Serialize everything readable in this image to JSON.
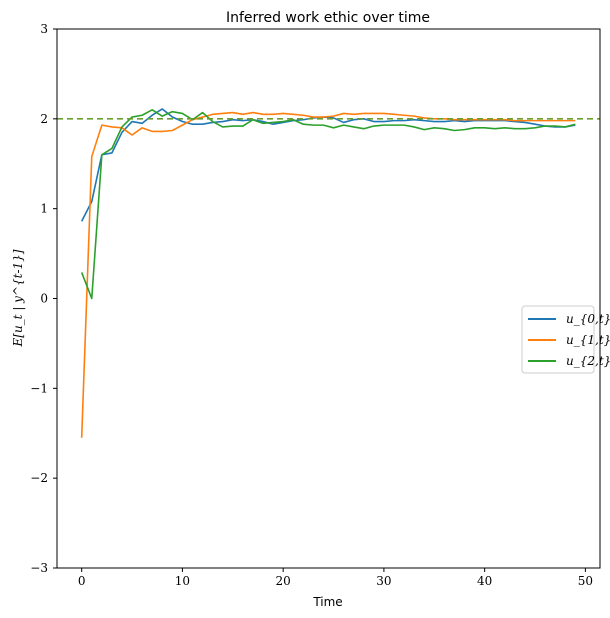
{
  "chart_data": {
    "type": "line",
    "title": "Inferred work ethic over time",
    "xlabel": "Time",
    "ylabel": "E[u_t | y^{t-1}]",
    "xlim": [
      -2.45,
      51.45
    ],
    "ylim": [
      -3,
      3
    ],
    "xticks": [
      0,
      10,
      20,
      30,
      40,
      50
    ],
    "yticks": [
      -3,
      -2,
      -1,
      0,
      1,
      2,
      3
    ],
    "ytick_labels": [
      "−3",
      "−2",
      "−1",
      "0",
      "1",
      "2",
      "3"
    ],
    "x": [
      0,
      1,
      2,
      3,
      4,
      5,
      6,
      7,
      8,
      9,
      10,
      11,
      12,
      13,
      14,
      15,
      16,
      17,
      18,
      19,
      20,
      21,
      22,
      23,
      24,
      25,
      26,
      27,
      28,
      29,
      30,
      31,
      32,
      33,
      34,
      35,
      36,
      37,
      38,
      39,
      40,
      41,
      42,
      43,
      44,
      45,
      46,
      47,
      48,
      49
    ],
    "series": [
      {
        "name": "u_{0,t}",
        "color": "#1f77b4",
        "values": [
          0.86,
          1.08,
          1.6,
          1.62,
          1.85,
          1.97,
          1.95,
          2.04,
          2.11,
          2.02,
          1.97,
          1.94,
          1.94,
          1.96,
          1.97,
          1.99,
          1.98,
          1.99,
          1.97,
          1.94,
          1.96,
          1.98,
          1.99,
          2.01,
          2.02,
          2.01,
          1.96,
          1.99,
          2.0,
          1.97,
          1.97,
          1.98,
          1.98,
          1.99,
          1.98,
          1.97,
          1.97,
          1.98,
          1.97,
          1.98,
          1.98,
          1.98,
          1.98,
          1.97,
          1.96,
          1.94,
          1.92,
          1.91,
          1.91,
          1.93
        ]
      },
      {
        "name": "u_{1,t}",
        "color": "#ff7f0e",
        "values": [
          -1.55,
          1.58,
          1.93,
          1.91,
          1.9,
          1.82,
          1.9,
          1.86,
          1.86,
          1.87,
          1.93,
          1.99,
          2.02,
          2.05,
          2.06,
          2.07,
          2.05,
          2.07,
          2.05,
          2.05,
          2.06,
          2.05,
          2.04,
          2.02,
          2.02,
          2.03,
          2.06,
          2.05,
          2.06,
          2.06,
          2.06,
          2.05,
          2.04,
          2.03,
          2.01,
          2.0,
          2.0,
          1.99,
          1.99,
          1.99,
          1.99,
          1.99,
          1.99,
          1.98,
          1.98,
          1.98,
          1.98,
          1.98,
          1.98,
          1.98
        ]
      },
      {
        "name": "u_{2,t}",
        "color": "#2ca02c",
        "values": [
          0.29,
          0.0,
          1.6,
          1.67,
          1.91,
          2.02,
          2.04,
          2.1,
          2.03,
          2.08,
          2.06,
          1.99,
          2.07,
          1.97,
          1.91,
          1.92,
          1.92,
          1.99,
          1.95,
          1.96,
          1.97,
          1.99,
          1.94,
          1.93,
          1.93,
          1.9,
          1.93,
          1.91,
          1.89,
          1.92,
          1.93,
          1.93,
          1.93,
          1.91,
          1.88,
          1.9,
          1.89,
          1.87,
          1.88,
          1.9,
          1.9,
          1.89,
          1.9,
          1.89,
          1.89,
          1.9,
          1.92,
          1.92,
          1.91,
          1.94
        ]
      }
    ],
    "reference_line": {
      "y": 2.0,
      "style": "dashed",
      "color": "#6a9e30"
    },
    "grid": false,
    "legend_position": "center-right"
  }
}
